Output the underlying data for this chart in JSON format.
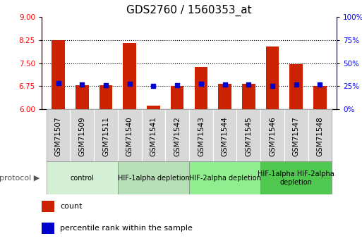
{
  "title": "GDS2760 / 1560353_at",
  "samples": [
    "GSM71507",
    "GSM71509",
    "GSM71511",
    "GSM71540",
    "GSM71541",
    "GSM71542",
    "GSM71543",
    "GSM71544",
    "GSM71545",
    "GSM71546",
    "GSM71547",
    "GSM71548"
  ],
  "red_values": [
    8.24,
    6.78,
    6.78,
    8.16,
    6.13,
    6.75,
    7.38,
    6.82,
    6.82,
    8.05,
    7.48,
    6.75
  ],
  "blue_values": [
    6.85,
    6.8,
    6.79,
    6.83,
    6.75,
    6.79,
    6.82,
    6.8,
    6.8,
    6.76,
    6.81,
    6.8
  ],
  "ylim_left": [
    6,
    9
  ],
  "ylim_right": [
    0,
    100
  ],
  "yticks_left": [
    6,
    6.75,
    7.5,
    8.25,
    9
  ],
  "yticks_right": [
    0,
    25,
    50,
    75,
    100
  ],
  "ytick_labels_right": [
    "0%",
    "25%",
    "50%",
    "75%",
    "100%"
  ],
  "hline_values": [
    6.75,
    7.5,
    8.25
  ],
  "groups": [
    {
      "label": "control",
      "start": 0,
      "end": 3,
      "color": "#d4f0d4"
    },
    {
      "label": "HIF-1alpha depletion",
      "start": 3,
      "end": 6,
      "color": "#b8e0b8"
    },
    {
      "label": "HIF-2alpha depletion",
      "start": 6,
      "end": 9,
      "color": "#90ee90"
    },
    {
      "label": "HIF-1alpha HIF-2alpha\ndepletion",
      "start": 9,
      "end": 12,
      "color": "#50c850"
    }
  ],
  "bar_color": "#cc2200",
  "dot_color": "#0000cc",
  "baseline": 6.0,
  "bar_width": 0.55,
  "dot_size": 18,
  "title_fontsize": 11,
  "tick_fontsize": 7.5,
  "legend_fontsize": 8,
  "group_label_fontsize": 7,
  "protocol_fontsize": 8
}
